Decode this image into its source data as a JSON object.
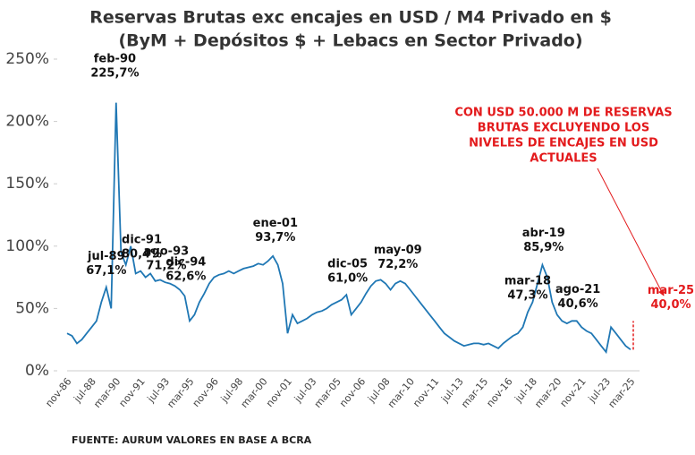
{
  "chart_data": {
    "type": "line",
    "title": "Reservas Brutas exc encajes en USD / M4 Privado en $",
    "subtitle": "(ByM + Depósitos $ + Lebacs en Sector Privado)",
    "source": "FUENTE: AURUM VALORES EN BASE A BCRA",
    "note": [
      "CON USD 50.000 M DE RESERVAS",
      "BRUTAS EXCLUYENDO LOS",
      "NIVELES DE ENCAJES EN USD",
      "ACTUALES"
    ],
    "categories": [
      "nov-86",
      null,
      null,
      null,
      null,
      "jul-88",
      null,
      null,
      null,
      null,
      "mar-90",
      null,
      null,
      null,
      null,
      "nov-91",
      null,
      null,
      null,
      null,
      "jul-93",
      null,
      null,
      null,
      null,
      "mar-95",
      null,
      null,
      null,
      null,
      "nov-96",
      null,
      null,
      null,
      null,
      "jul-98",
      null,
      null,
      null,
      null,
      "mar-00",
      null,
      null,
      null,
      null,
      "nov-01",
      null,
      null,
      null,
      null,
      "jul-03",
      null,
      null,
      null,
      null,
      "mar-05",
      null,
      null,
      null,
      null,
      "nov-06",
      null,
      null,
      null,
      null,
      "jul-08",
      null,
      null,
      null,
      null,
      "mar-10",
      null,
      null,
      null,
      null,
      "nov-11",
      null,
      null,
      null,
      null,
      "jul-13",
      null,
      null,
      null,
      null,
      "mar-15",
      null,
      null,
      null,
      null,
      "nov-16",
      null,
      null,
      null,
      null,
      "jul-18",
      null,
      null,
      null,
      null,
      "mar-20",
      null,
      null,
      null,
      null,
      "nov-21",
      null,
      null,
      null,
      null,
      "jul-23",
      null,
      null,
      null,
      null,
      "mar-25"
    ],
    "series": [
      {
        "name": "Reservas / M4",
        "color": "#1f77b4",
        "values": [
          30,
          28,
          22,
          25,
          30,
          35,
          40,
          55,
          67,
          50,
          215,
          95,
          85,
          100,
          78,
          80,
          75,
          78,
          72,
          73,
          71,
          70,
          68,
          65,
          60,
          40,
          45,
          55,
          62,
          70,
          75,
          77,
          78,
          80,
          78,
          80,
          82,
          83,
          84,
          86,
          85,
          88,
          92,
          85,
          70,
          30,
          45,
          38,
          40,
          42,
          45,
          47,
          48,
          50,
          53,
          55,
          57,
          61,
          45,
          50,
          55,
          62,
          68,
          72,
          73,
          70,
          65,
          70,
          72,
          70,
          65,
          60,
          55,
          50,
          45,
          40,
          35,
          30,
          27,
          24,
          22,
          20,
          21,
          22,
          22,
          21,
          22,
          20,
          18,
          22,
          25,
          28,
          30,
          35,
          47,
          55,
          70,
          85,
          75,
          55,
          45,
          40,
          38,
          40,
          40,
          35,
          32,
          30,
          25,
          20,
          15,
          35,
          30,
          25,
          20,
          17
        ]
      }
    ],
    "ylim": [
      0,
      250
    ],
    "yticks": [
      {
        "value": 0,
        "label": "0%"
      },
      {
        "value": 50,
        "label": "50%"
      },
      {
        "value": 100,
        "label": "100%"
      },
      {
        "value": 150,
        "label": "150%"
      },
      {
        "value": 200,
        "label": "200%"
      },
      {
        "value": 250,
        "label": "250%"
      }
    ],
    "annotations": [
      {
        "label": "jul-89",
        "value": 67.1,
        "value_label": "67,1%"
      },
      {
        "label": "feb-90",
        "value": 225.7,
        "value_label": "225,7%"
      },
      {
        "label": "dic-91",
        "value": 80.4,
        "value_label": "80,4%"
      },
      {
        "label": "ago-93",
        "value": 71.2,
        "value_label": "71,2%"
      },
      {
        "label": "dic-94",
        "value": 62.6,
        "value_label": "62,6%"
      },
      {
        "label": "ene-01",
        "value": 93.7,
        "value_label": "93,7%"
      },
      {
        "label": "dic-05",
        "value": 61.0,
        "value_label": "61,0%"
      },
      {
        "label": "may-09",
        "value": 72.2,
        "value_label": "72,2%"
      },
      {
        "label": "mar-18",
        "value": 47.3,
        "value_label": "47,3%"
      },
      {
        "label": "abr-19",
        "value": 85.9,
        "value_label": "85,9%"
      },
      {
        "label": "ago-21",
        "value": 40.6,
        "value_label": "40,6%"
      },
      {
        "label": "mar-25",
        "value": 40.0,
        "value_label": "40,0%",
        "color": "#e31a1c"
      }
    ]
  }
}
